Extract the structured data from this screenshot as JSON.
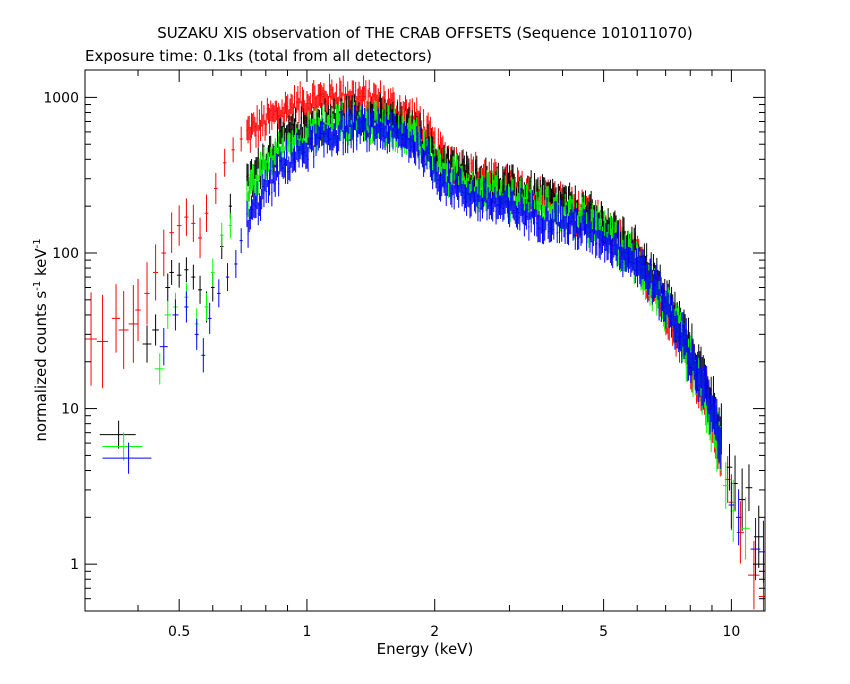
{
  "chart_data": {
    "type": "scatter",
    "title": "SUZAKU XIS observation of THE CRAB OFFSETS (Sequence 101011070)",
    "subtitle": "Exposure time: 0.1ks (total from all detectors)",
    "xlabel": "Energy (keV)",
    "ylabel_main": "normalized counts s",
    "ylabel_sup1": "-1",
    "ylabel_mid": " keV",
    "ylabel_sup2": "-1",
    "x_scale": "log",
    "y_scale": "log",
    "xlim": [
      0.3,
      12
    ],
    "ylim": [
      0.5,
      1500
    ],
    "x_ticks": [
      {
        "value": 0.5,
        "label": "0.5"
      },
      {
        "value": 1,
        "label": "1"
      },
      {
        "value": 2,
        "label": "2"
      },
      {
        "value": 5,
        "label": "5"
      },
      {
        "value": 10,
        "label": "10"
      }
    ],
    "y_ticks": [
      {
        "value": 1,
        "label": "1"
      },
      {
        "value": 10,
        "label": "10"
      },
      {
        "value": 100,
        "label": "100"
      },
      {
        "value": 1000,
        "label": "1000"
      }
    ],
    "grid": false,
    "legend": "none",
    "series": [
      {
        "color": "#ff0000",
        "points": [
          {
            "x": 0.31,
            "y": 28,
            "xerr": 0.01,
            "yerr": 0.3
          },
          {
            "x": 0.33,
            "y": 27,
            "xerr": 0.01,
            "yerr": 0.3
          },
          {
            "x": 0.355,
            "y": 38,
            "xerr": 0.008,
            "yerr": 0.22
          },
          {
            "x": 0.37,
            "y": 32,
            "xerr": 0.01,
            "yerr": 0.25
          },
          {
            "x": 0.39,
            "y": 35,
            "xerr": 0.01,
            "yerr": 0.25
          },
          {
            "x": 0.4,
            "y": 43,
            "xerr": 0.006,
            "yerr": 0.2
          },
          {
            "x": 0.42,
            "y": 55,
            "xerr": 0.006,
            "yerr": 0.2
          },
          {
            "x": 0.44,
            "y": 75,
            "xerr": 0.006,
            "yerr": 0.18
          },
          {
            "x": 0.46,
            "y": 100,
            "xerr": 0.006,
            "yerr": 0.15
          },
          {
            "x": 0.48,
            "y": 135,
            "xerr": 0.006,
            "yerr": 0.13
          },
          {
            "x": 0.5,
            "y": 150,
            "xerr": 0.006,
            "yerr": 0.13
          },
          {
            "x": 0.52,
            "y": 170,
            "xerr": 0.006,
            "yerr": 0.12
          },
          {
            "x": 0.54,
            "y": 155,
            "xerr": 0.006,
            "yerr": 0.12
          },
          {
            "x": 0.56,
            "y": 125,
            "xerr": 0.006,
            "yerr": 0.13
          },
          {
            "x": 0.58,
            "y": 180,
            "xerr": 0.006,
            "yerr": 0.12
          },
          {
            "x": 0.61,
            "y": 260,
            "xerr": 0.006,
            "yerr": 0.1
          },
          {
            "x": 0.64,
            "y": 380,
            "xerr": 0.006,
            "yerr": 0.09
          },
          {
            "x": 0.67,
            "y": 460,
            "xerr": 0.006,
            "yerr": 0.08
          },
          {
            "x": 0.7,
            "y": 540,
            "xerr": 0.006,
            "yerr": 0.08
          }
        ],
        "dense": [
          {
            "x": 0.72,
            "y": 580
          },
          {
            "x": 0.8,
            "y": 700
          },
          {
            "x": 0.9,
            "y": 840
          },
          {
            "x": 1.0,
            "y": 930
          },
          {
            "x": 1.1,
            "y": 990
          },
          {
            "x": 1.2,
            "y": 1020
          },
          {
            "x": 1.3,
            "y": 1000
          },
          {
            "x": 1.5,
            "y": 920
          },
          {
            "x": 1.7,
            "y": 790
          },
          {
            "x": 1.85,
            "y": 680
          },
          {
            "x": 2.0,
            "y": 470
          },
          {
            "x": 2.1,
            "y": 420
          },
          {
            "x": 2.3,
            "y": 350
          },
          {
            "x": 2.6,
            "y": 300
          },
          {
            "x": 3.0,
            "y": 260
          },
          {
            "x": 3.5,
            "y": 230
          },
          {
            "x": 4.0,
            "y": 200
          },
          {
            "x": 4.5,
            "y": 170
          },
          {
            "x": 5.0,
            "y": 145
          },
          {
            "x": 5.5,
            "y": 115
          },
          {
            "x": 6.0,
            "y": 90
          },
          {
            "x": 6.5,
            "y": 65
          },
          {
            "x": 7.0,
            "y": 45
          },
          {
            "x": 7.5,
            "y": 30
          },
          {
            "x": 8.0,
            "y": 20
          },
          {
            "x": 8.5,
            "y": 14
          },
          {
            "x": 9.0,
            "y": 9
          },
          {
            "x": 9.5,
            "y": 5
          }
        ],
        "tail": [
          {
            "x": 9.8,
            "y": 3.5,
            "xerr": 0.15,
            "yerr": 0.15
          },
          {
            "x": 10.0,
            "y": 2.5,
            "xerr": 0.15,
            "yerr": 0.18
          },
          {
            "x": 10.5,
            "y": 1.6,
            "xerr": 0.2,
            "yerr": 0.2
          },
          {
            "x": 11.3,
            "y": 0.85,
            "xerr": 0.35,
            "yerr": 0.22
          },
          {
            "x": 11.9,
            "y": 0.62,
            "xerr": 0.3,
            "yerr": 0.25
          }
        ]
      },
      {
        "color": "#000000",
        "points": [
          {
            "x": 0.36,
            "y": 6.8,
            "xerr": 0.035,
            "yerr": 0.09
          },
          {
            "x": 0.42,
            "y": 26,
            "xerr": 0.01,
            "yerr": 0.12
          },
          {
            "x": 0.44,
            "y": 32,
            "xerr": 0.008,
            "yerr": 0.1
          },
          {
            "x": 0.47,
            "y": 60,
            "xerr": 0.006,
            "yerr": 0.09
          },
          {
            "x": 0.48,
            "y": 75,
            "xerr": 0.006,
            "yerr": 0.08
          },
          {
            "x": 0.5,
            "y": 72,
            "xerr": 0.006,
            "yerr": 0.08
          },
          {
            "x": 0.52,
            "y": 78,
            "xerr": 0.006,
            "yerr": 0.08
          },
          {
            "x": 0.54,
            "y": 70,
            "xerr": 0.006,
            "yerr": 0.08
          },
          {
            "x": 0.56,
            "y": 58,
            "xerr": 0.006,
            "yerr": 0.09
          },
          {
            "x": 0.58,
            "y": 45,
            "xerr": 0.006,
            "yerr": 0.1
          },
          {
            "x": 0.6,
            "y": 60,
            "xerr": 0.006,
            "yerr": 0.09
          },
          {
            "x": 0.63,
            "y": 110,
            "xerr": 0.006,
            "yerr": 0.08
          },
          {
            "x": 0.66,
            "y": 200,
            "xerr": 0.006,
            "yerr": 0.08
          }
        ],
        "dense": [
          {
            "x": 0.72,
            "y": 260
          },
          {
            "x": 0.8,
            "y": 420
          },
          {
            "x": 0.9,
            "y": 560
          },
          {
            "x": 1.0,
            "y": 650
          },
          {
            "x": 1.1,
            "y": 700
          },
          {
            "x": 1.2,
            "y": 740
          },
          {
            "x": 1.3,
            "y": 760
          },
          {
            "x": 1.5,
            "y": 730
          },
          {
            "x": 1.7,
            "y": 640
          },
          {
            "x": 1.85,
            "y": 560
          },
          {
            "x": 2.0,
            "y": 420
          },
          {
            "x": 2.1,
            "y": 380
          },
          {
            "x": 2.3,
            "y": 330
          },
          {
            "x": 2.6,
            "y": 290
          },
          {
            "x": 3.0,
            "y": 260
          },
          {
            "x": 3.5,
            "y": 235
          },
          {
            "x": 4.0,
            "y": 205
          },
          {
            "x": 4.5,
            "y": 180
          },
          {
            "x": 5.0,
            "y": 155
          },
          {
            "x": 5.5,
            "y": 125
          },
          {
            "x": 6.0,
            "y": 100
          },
          {
            "x": 6.5,
            "y": 75
          },
          {
            "x": 7.0,
            "y": 52
          },
          {
            "x": 7.5,
            "y": 36
          },
          {
            "x": 8.0,
            "y": 24
          },
          {
            "x": 8.5,
            "y": 17
          },
          {
            "x": 9.0,
            "y": 11
          },
          {
            "x": 9.5,
            "y": 7
          }
        ],
        "tail": [
          {
            "x": 9.9,
            "y": 4.2,
            "xerr": 0.15,
            "yerr": 0.15
          },
          {
            "x": 10.2,
            "y": 3.3,
            "xerr": 0.15,
            "yerr": 0.18
          },
          {
            "x": 10.6,
            "y": 2.6,
            "xerr": 0.2,
            "yerr": 0.2
          },
          {
            "x": 11.0,
            "y": 3.1,
            "xerr": 0.2,
            "yerr": 0.15
          },
          {
            "x": 11.6,
            "y": 1.5,
            "xerr": 0.3,
            "yerr": 0.2
          }
        ]
      },
      {
        "color": "#00ff00",
        "points": [
          {
            "x": 0.37,
            "y": 5.7,
            "xerr": 0.04,
            "yerr": 0.09
          },
          {
            "x": 0.45,
            "y": 18,
            "xerr": 0.012,
            "yerr": 0.1
          },
          {
            "x": 0.47,
            "y": 40,
            "xerr": 0.008,
            "yerr": 0.09
          },
          {
            "x": 0.49,
            "y": 45,
            "xerr": 0.006,
            "yerr": 0.09
          },
          {
            "x": 0.52,
            "y": 52,
            "xerr": 0.006,
            "yerr": 0.09
          },
          {
            "x": 0.55,
            "y": 35,
            "xerr": 0.006,
            "yerr": 0.1
          },
          {
            "x": 0.58,
            "y": 45,
            "xerr": 0.006,
            "yerr": 0.09
          },
          {
            "x": 0.6,
            "y": 75,
            "xerr": 0.006,
            "yerr": 0.09
          },
          {
            "x": 0.63,
            "y": 130,
            "xerr": 0.006,
            "yerr": 0.08
          },
          {
            "x": 0.66,
            "y": 150,
            "xerr": 0.006,
            "yerr": 0.08
          }
        ],
        "dense": [
          {
            "x": 0.72,
            "y": 220
          },
          {
            "x": 0.8,
            "y": 360
          },
          {
            "x": 0.9,
            "y": 490
          },
          {
            "x": 1.0,
            "y": 570
          },
          {
            "x": 1.1,
            "y": 630
          },
          {
            "x": 1.2,
            "y": 680
          },
          {
            "x": 1.3,
            "y": 700
          },
          {
            "x": 1.5,
            "y": 680
          },
          {
            "x": 1.7,
            "y": 600
          },
          {
            "x": 1.85,
            "y": 530
          },
          {
            "x": 2.0,
            "y": 380
          },
          {
            "x": 2.1,
            "y": 330
          },
          {
            "x": 2.3,
            "y": 290
          },
          {
            "x": 2.6,
            "y": 255
          },
          {
            "x": 3.0,
            "y": 230
          },
          {
            "x": 3.5,
            "y": 205
          },
          {
            "x": 4.0,
            "y": 180
          },
          {
            "x": 4.5,
            "y": 160
          },
          {
            "x": 5.0,
            "y": 135
          },
          {
            "x": 5.5,
            "y": 110
          },
          {
            "x": 6.0,
            "y": 85
          },
          {
            "x": 6.5,
            "y": 62
          },
          {
            "x": 7.0,
            "y": 44
          },
          {
            "x": 7.5,
            "y": 30
          },
          {
            "x": 8.0,
            "y": 20
          },
          {
            "x": 8.5,
            "y": 13
          },
          {
            "x": 9.0,
            "y": 8
          },
          {
            "x": 9.5,
            "y": 5
          }
        ],
        "tail": [
          {
            "x": 9.7,
            "y": 3.2,
            "xerr": 0.15,
            "yerr": 0.15
          },
          {
            "x": 10.1,
            "y": 2.2,
            "xerr": 0.15,
            "yerr": 0.2
          },
          {
            "x": 10.8,
            "y": 1.7,
            "xerr": 0.25,
            "yerr": 0.2
          }
        ]
      },
      {
        "color": "#0000ff",
        "points": [
          {
            "x": 0.38,
            "y": 4.8,
            "xerr": 0.05,
            "yerr": 0.1
          },
          {
            "x": 0.46,
            "y": 25,
            "xerr": 0.01,
            "yerr": 0.12
          },
          {
            "x": 0.49,
            "y": 40,
            "xerr": 0.008,
            "yerr": 0.1
          },
          {
            "x": 0.52,
            "y": 45,
            "xerr": 0.006,
            "yerr": 0.1
          },
          {
            "x": 0.55,
            "y": 30,
            "xerr": 0.006,
            "yerr": 0.1
          },
          {
            "x": 0.57,
            "y": 22,
            "xerr": 0.006,
            "yerr": 0.11
          },
          {
            "x": 0.59,
            "y": 38,
            "xerr": 0.006,
            "yerr": 0.1
          },
          {
            "x": 0.62,
            "y": 55,
            "xerr": 0.006,
            "yerr": 0.09
          },
          {
            "x": 0.65,
            "y": 70,
            "xerr": 0.006,
            "yerr": 0.09
          },
          {
            "x": 0.68,
            "y": 85,
            "xerr": 0.006,
            "yerr": 0.09
          },
          {
            "x": 0.7,
            "y": 120,
            "xerr": 0.006,
            "yerr": 0.08
          }
        ],
        "dense": [
          {
            "x": 0.72,
            "y": 150
          },
          {
            "x": 0.8,
            "y": 260
          },
          {
            "x": 0.9,
            "y": 380
          },
          {
            "x": 1.0,
            "y": 470
          },
          {
            "x": 1.1,
            "y": 540
          },
          {
            "x": 1.2,
            "y": 600
          },
          {
            "x": 1.3,
            "y": 630
          },
          {
            "x": 1.5,
            "y": 620
          },
          {
            "x": 1.7,
            "y": 540
          },
          {
            "x": 1.85,
            "y": 470
          },
          {
            "x": 2.0,
            "y": 330
          },
          {
            "x": 2.1,
            "y": 290
          },
          {
            "x": 2.3,
            "y": 250
          },
          {
            "x": 2.6,
            "y": 215
          },
          {
            "x": 3.0,
            "y": 190
          },
          {
            "x": 3.5,
            "y": 170
          },
          {
            "x": 4.0,
            "y": 155
          },
          {
            "x": 4.5,
            "y": 140
          },
          {
            "x": 5.0,
            "y": 125
          },
          {
            "x": 5.5,
            "y": 105
          },
          {
            "x": 6.0,
            "y": 85
          },
          {
            "x": 6.5,
            "y": 65
          },
          {
            "x": 7.0,
            "y": 46
          },
          {
            "x": 7.5,
            "y": 32
          },
          {
            "x": 8.0,
            "y": 22
          },
          {
            "x": 8.5,
            "y": 15
          },
          {
            "x": 9.0,
            "y": 9.5
          },
          {
            "x": 9.5,
            "y": 6
          }
        ],
        "tail": [
          {
            "x": 10.0,
            "y": 2.4,
            "xerr": 0.15,
            "yerr": 0.15
          },
          {
            "x": 10.4,
            "y": 2.0,
            "xerr": 0.15,
            "yerr": 0.18
          },
          {
            "x": 11.4,
            "y": 1.25,
            "xerr": 0.3,
            "yerr": 0.2
          },
          {
            "x": 11.9,
            "y": 1.2,
            "xerr": 0.3,
            "yerr": 0.2
          }
        ]
      }
    ]
  }
}
